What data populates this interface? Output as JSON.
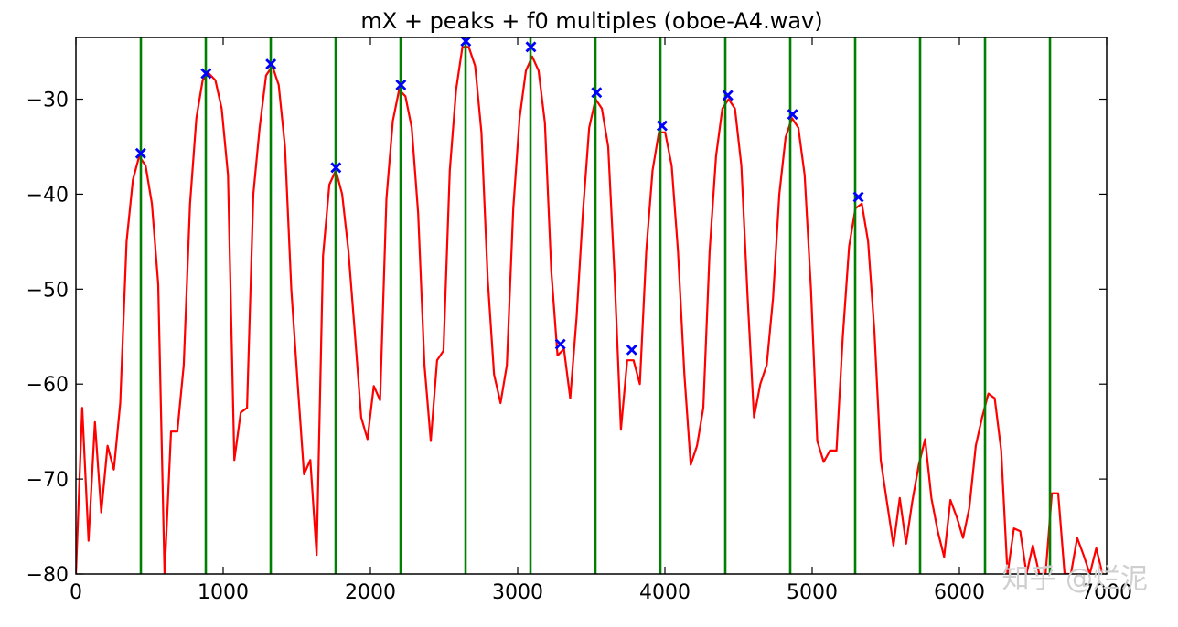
{
  "chart_data": {
    "type": "line",
    "title": "mX + peaks + f0 multiples (oboe-A4.wav)",
    "xlabel": "",
    "ylabel": "",
    "xlim": [
      0,
      7000
    ],
    "ylim": [
      -80,
      -23.5
    ],
    "grid": false,
    "x_ticks": [
      0,
      1000,
      2000,
      3000,
      4000,
      5000,
      6000,
      7000
    ],
    "x_tick_labels": [
      "0",
      "1000",
      "2000",
      "3000",
      "4000",
      "5000",
      "6000",
      "7000"
    ],
    "y_ticks": [
      -30,
      -40,
      -50,
      -60,
      -70,
      -80
    ],
    "y_tick_labels": [
      "−30",
      "−40",
      "−50",
      "−60",
      "−70",
      "−80"
    ],
    "series": [
      {
        "kind": "spectrum-line",
        "color": "#ff0000",
        "points": [
          [
            0,
            -80
          ],
          [
            43,
            -62.5
          ],
          [
            86,
            -76.5
          ],
          [
            129,
            -64
          ],
          [
            172,
            -73.5
          ],
          [
            215,
            -66.5
          ],
          [
            258,
            -69
          ],
          [
            301,
            -62
          ],
          [
            344,
            -45
          ],
          [
            387,
            -38.5
          ],
          [
            430,
            -36
          ],
          [
            473,
            -37
          ],
          [
            516,
            -41
          ],
          [
            559,
            -49.5
          ],
          [
            602,
            -80
          ],
          [
            646,
            -65
          ],
          [
            689,
            -65
          ],
          [
            732,
            -58
          ],
          [
            775,
            -41
          ],
          [
            818,
            -32
          ],
          [
            861,
            -28
          ],
          [
            904,
            -27.3
          ],
          [
            947,
            -28
          ],
          [
            990,
            -31
          ],
          [
            1033,
            -38
          ],
          [
            1076,
            -68
          ],
          [
            1119,
            -63
          ],
          [
            1162,
            -62.5
          ],
          [
            1205,
            -40
          ],
          [
            1248,
            -33
          ],
          [
            1291,
            -27.5
          ],
          [
            1334,
            -26.5
          ],
          [
            1377,
            -28.5
          ],
          [
            1420,
            -35
          ],
          [
            1463,
            -50
          ],
          [
            1506,
            -60
          ],
          [
            1549,
            -69.5
          ],
          [
            1592,
            -68
          ],
          [
            1635,
            -78
          ],
          [
            1678,
            -46.5
          ],
          [
            1721,
            -39
          ],
          [
            1765,
            -37.5
          ],
          [
            1808,
            -40
          ],
          [
            1851,
            -46
          ],
          [
            1894,
            -54.5
          ],
          [
            1937,
            -63.5
          ],
          [
            1980,
            -65.8
          ],
          [
            2023,
            -60.2
          ],
          [
            2066,
            -61.7
          ],
          [
            2109,
            -40.5
          ],
          [
            2152,
            -32.3
          ],
          [
            2195,
            -29
          ],
          [
            2238,
            -29.7
          ],
          [
            2281,
            -33
          ],
          [
            2324,
            -42
          ],
          [
            2367,
            -58
          ],
          [
            2410,
            -66
          ],
          [
            2453,
            -57.5
          ],
          [
            2496,
            -56.5
          ],
          [
            2539,
            -37.5
          ],
          [
            2582,
            -29
          ],
          [
            2625,
            -24.5
          ],
          [
            2668,
            -24.5
          ],
          [
            2711,
            -26.5
          ],
          [
            2754,
            -33.5
          ],
          [
            2797,
            -49
          ],
          [
            2840,
            -59
          ],
          [
            2884,
            -62
          ],
          [
            2927,
            -58
          ],
          [
            2970,
            -41.5
          ],
          [
            3013,
            -32
          ],
          [
            3056,
            -27
          ],
          [
            3099,
            -25.5
          ],
          [
            3142,
            -27
          ],
          [
            3185,
            -32.5
          ],
          [
            3228,
            -48
          ],
          [
            3271,
            -57
          ],
          [
            3314,
            -56.3
          ],
          [
            3357,
            -61.5
          ],
          [
            3400,
            -53
          ],
          [
            3443,
            -42
          ],
          [
            3486,
            -33
          ],
          [
            3529,
            -30
          ],
          [
            3572,
            -31
          ],
          [
            3615,
            -35
          ],
          [
            3658,
            -48.5
          ],
          [
            3701,
            -64.8
          ],
          [
            3744,
            -57.5
          ],
          [
            3787,
            -57.5
          ],
          [
            3830,
            -60
          ],
          [
            3873,
            -46
          ],
          [
            3916,
            -37.5
          ],
          [
            3959,
            -33.5
          ],
          [
            4002,
            -33.5
          ],
          [
            4046,
            -37
          ],
          [
            4089,
            -46
          ],
          [
            4132,
            -59
          ],
          [
            4175,
            -68.5
          ],
          [
            4218,
            -66.5
          ],
          [
            4261,
            -62.5
          ],
          [
            4304,
            -46
          ],
          [
            4347,
            -36
          ],
          [
            4390,
            -31
          ],
          [
            4433,
            -30
          ],
          [
            4476,
            -31
          ],
          [
            4519,
            -37
          ],
          [
            4562,
            -51
          ],
          [
            4605,
            -63.5
          ],
          [
            4648,
            -60
          ],
          [
            4691,
            -58
          ],
          [
            4734,
            -51
          ],
          [
            4777,
            -40
          ],
          [
            4820,
            -34
          ],
          [
            4863,
            -32
          ],
          [
            4906,
            -33
          ],
          [
            4949,
            -38
          ],
          [
            4992,
            -50
          ],
          [
            5035,
            -66
          ],
          [
            5078,
            -68.2
          ],
          [
            5121,
            -67
          ],
          [
            5165,
            -67
          ],
          [
            5208,
            -55
          ],
          [
            5251,
            -45.5
          ],
          [
            5294,
            -41.5
          ],
          [
            5337,
            -41
          ],
          [
            5380,
            -45
          ],
          [
            5423,
            -54.5
          ],
          [
            5466,
            -68
          ],
          [
            5509,
            -72.5
          ],
          [
            5552,
            -77
          ],
          [
            5595,
            -72
          ],
          [
            5638,
            -76.8
          ],
          [
            5681,
            -72.3
          ],
          [
            5724,
            -68.5
          ],
          [
            5767,
            -65.8
          ],
          [
            5810,
            -72
          ],
          [
            5853,
            -75.5
          ],
          [
            5896,
            -78.2
          ],
          [
            5939,
            -72.2
          ],
          [
            5982,
            -74
          ],
          [
            6025,
            -76.2
          ],
          [
            6068,
            -73
          ],
          [
            6111,
            -66.5
          ],
          [
            6154,
            -63.5
          ],
          [
            6197,
            -61
          ],
          [
            6240,
            -61.5
          ],
          [
            6284,
            -67
          ],
          [
            6327,
            -80
          ],
          [
            6370,
            -75.2
          ],
          [
            6413,
            -75.5
          ],
          [
            6456,
            -80
          ],
          [
            6499,
            -77
          ],
          [
            6542,
            -80
          ],
          [
            6585,
            -80
          ],
          [
            6628,
            -71.5
          ],
          [
            6671,
            -71.5
          ],
          [
            6714,
            -80
          ],
          [
            6757,
            -80
          ],
          [
            6800,
            -76.2
          ],
          [
            6843,
            -78
          ],
          [
            6886,
            -80
          ],
          [
            6929,
            -77.3
          ],
          [
            6972,
            -80
          ]
        ]
      },
      {
        "kind": "peaks",
        "color": "#0000ff",
        "marker": "x",
        "points": [
          [
            440,
            -35.7
          ],
          [
            884,
            -27.3
          ],
          [
            1324,
            -26.3
          ],
          [
            1766,
            -37.2
          ],
          [
            2207,
            -28.5
          ],
          [
            2648,
            -23.9
          ],
          [
            3090,
            -24.5
          ],
          [
            3290,
            -55.8
          ],
          [
            3536,
            -29.3
          ],
          [
            3775,
            -56.4
          ],
          [
            3981,
            -32.8
          ],
          [
            4427,
            -29.6
          ],
          [
            4867,
            -31.6
          ],
          [
            5314,
            -40.3
          ]
        ]
      },
      {
        "kind": "f0-multiples",
        "color": "#008000",
        "x": [
          441,
          882,
          1323,
          1764,
          2205,
          2646,
          3087,
          3528,
          3969,
          4410,
          4851,
          5292,
          5733,
          6174,
          6615
        ]
      }
    ]
  },
  "watermark": "知乎 @烂泥"
}
